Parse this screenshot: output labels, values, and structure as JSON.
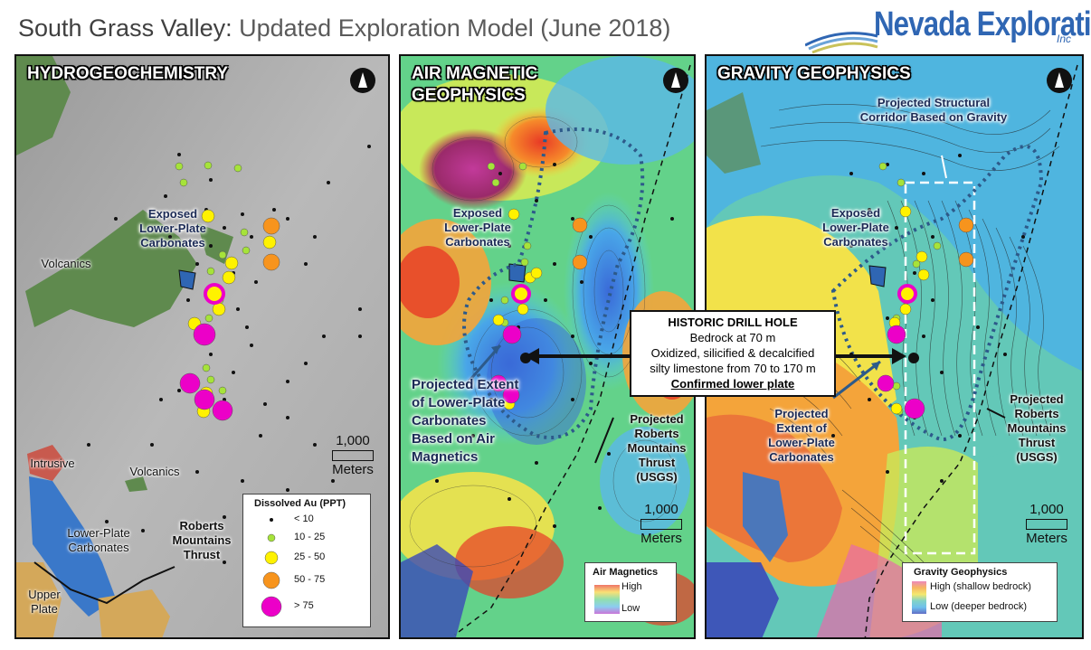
{
  "title": {
    "part1": "South Grass Valley: ",
    "part2": "Updated Exploration Model (June 2018)"
  },
  "logo": {
    "name": "Nevada Exploration",
    "suffix": "Inc"
  },
  "panels": {
    "hydro": {
      "title": "HYDROGEOCHEMISTRY",
      "labels": {
        "exposed": "Exposed Lower-Plate Carbonates",
        "volcanics1": "Volcanics",
        "volcanics2": "Volcanics",
        "intrusive": "Intrusive",
        "lower_plate": "Lower-Plate Carbonates",
        "upper_plate": "Upper Plate",
        "thrust": "Roberts Mountains Thrust"
      },
      "scale": {
        "value": "1,000",
        "unit": "Meters"
      },
      "legend": {
        "title": "Dissolved Au (PPT)",
        "items": [
          {
            "label": "< 10",
            "color": "#111111"
          },
          {
            "label": "10 - 25",
            "color": "#a6e33a"
          },
          {
            "label": "25 - 50",
            "color": "#fff200"
          },
          {
            "label": "50 - 75",
            "color": "#f7941d"
          },
          {
            "label": "> 75",
            "color": "#ec00c8"
          }
        ]
      }
    },
    "mag": {
      "title": "AIR MAGNETIC GEOPHYSICS",
      "labels": {
        "exposed": "Exposed Lower-Plate Carbonates",
        "projected": "Projected Extent of Lower-Plate Carbonates Based on Air Magnetics",
        "thrust": "Projected Roberts Mountains Thrust (USGS)"
      },
      "scale": {
        "value": "1,000",
        "unit": "Meters"
      },
      "legend": {
        "title": "Air Magnetics",
        "high": "High",
        "low": "Low"
      }
    },
    "grav": {
      "title": "GRAVITY GEOPHYSICS",
      "labels": {
        "corridor": "Projected Structural Corridor Based on Gravity",
        "exposed": "Exposed Lower-Plate Carbonates",
        "projected": "Projected Extent of Lower-Plate Carbonates",
        "thrust": "Projected Roberts Mountains Thrust (USGS)"
      },
      "scale": {
        "value": "1,000",
        "unit": "Meters"
      },
      "legend": {
        "title": "Gravity Geophysics",
        "high": "High (shallow bedrock)",
        "low": "Low (deeper bedrock)"
      }
    }
  },
  "callout": {
    "title": "HISTORIC DRILL HOLE",
    "line1": "Bedrock at 70 m",
    "line2": "Oxidized, silicified & decalcified",
    "line3": "silty limestone from 70 to 170 m",
    "line4": "Confirmed lower plate"
  },
  "colors": {
    "accent_blue": "#2f66b3",
    "dashed_outline": "#2d5a8a"
  }
}
